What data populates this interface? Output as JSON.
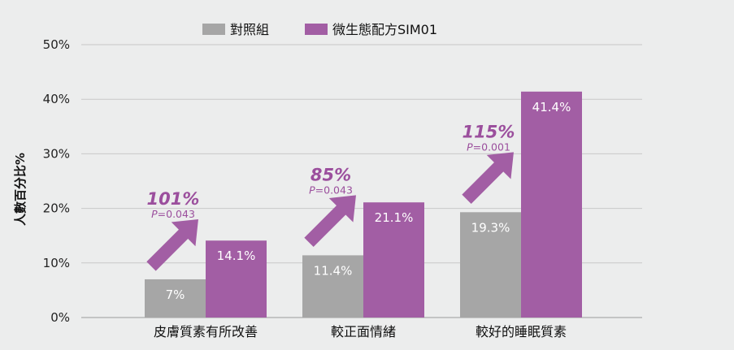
{
  "chart_data": {
    "type": "bar",
    "ylabel": "人數百分比%",
    "ylim": [
      0,
      50
    ],
    "yticks": [
      "0%",
      "10%",
      "20%",
      "30%",
      "40%",
      "50%"
    ],
    "grid": true,
    "legend_position": "top",
    "categories": [
      "皮膚質素有所改善",
      "較正面情緒",
      "較好的睡眠質素"
    ],
    "series": [
      {
        "name": "對照組",
        "color": "#a6a6a6",
        "values": [
          7,
          11.4,
          19.3
        ],
        "labels": [
          "7%",
          "11.4%",
          "19.3%"
        ]
      },
      {
        "name": "微生態配方SIM01",
        "color": "#a25ea4",
        "values": [
          14.1,
          21.1,
          41.4
        ],
        "labels": [
          "14.1%",
          "21.1%",
          "41.4%"
        ]
      }
    ],
    "annotations": [
      {
        "increase": "101%",
        "p_prefix": "P",
        "p_value": "=0.043"
      },
      {
        "increase": "85%",
        "p_prefix": "P",
        "p_value": "=0.043"
      },
      {
        "increase": "115%",
        "p_prefix": "P",
        "p_value": "=0.001"
      }
    ],
    "colors": {
      "arrow": "#a25ea4",
      "annotation_text": "#9b4f9d",
      "grid": "#c8c8c8",
      "background": "#eceded"
    }
  }
}
